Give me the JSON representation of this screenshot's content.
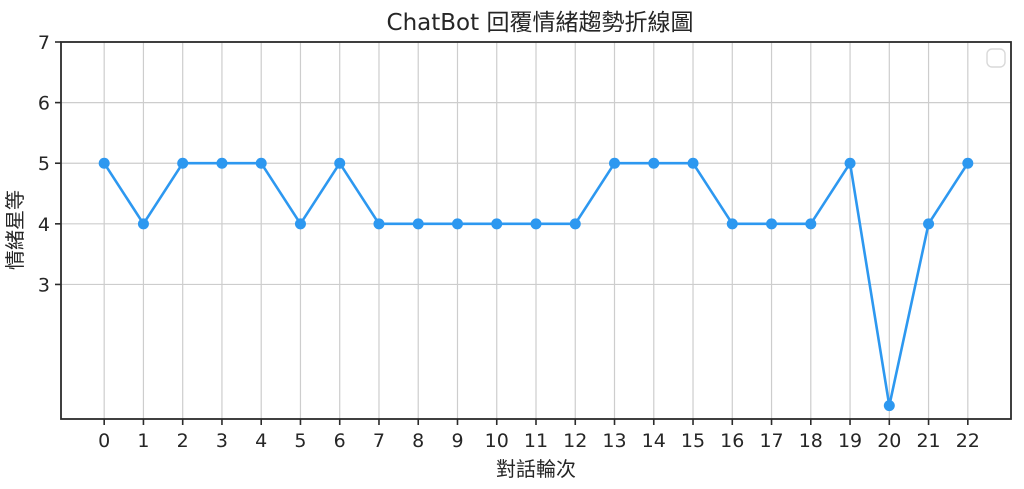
{
  "chart_data": {
    "type": "line",
    "title": "ChatBot 回覆情緒趨勢折線圖",
    "xlabel": "對話輪次",
    "ylabel": "情緒星等",
    "x": [
      0,
      1,
      2,
      3,
      4,
      5,
      6,
      7,
      8,
      9,
      10,
      11,
      12,
      13,
      14,
      15,
      16,
      17,
      18,
      19,
      20,
      21,
      22
    ],
    "values": [
      5,
      4,
      5,
      5,
      5,
      4,
      5,
      4,
      4,
      4,
      4,
      4,
      4,
      5,
      5,
      5,
      4,
      4,
      4,
      5,
      1,
      4,
      5
    ],
    "xtick_labels": [
      "0",
      "1",
      "2",
      "3",
      "4",
      "5",
      "6",
      "7",
      "8",
      "9",
      "10",
      "11",
      "12",
      "13",
      "14",
      "15",
      "16",
      "17",
      "18",
      "19",
      "20",
      "21",
      "22"
    ],
    "yticks": [
      3,
      4,
      5,
      6,
      7
    ],
    "ytick_labels": [
      "3",
      "4",
      "5",
      "6",
      "7"
    ],
    "xlim": [
      -1.1,
      23.1
    ],
    "ylim": [
      0.78,
      7.0
    ],
    "grid": true,
    "legend": {
      "visible": true,
      "entries": [],
      "position": "upper-right"
    },
    "colors": {
      "line": "#2D98F0",
      "grid": "#cdcdcd",
      "axis": "#2b2b2b",
      "text": "#262626",
      "legend_border": "#d9d9d9",
      "background": "#ffffff"
    },
    "marker": {
      "shape": "circle",
      "radius": 5.5
    },
    "line_width": 2.6
  }
}
